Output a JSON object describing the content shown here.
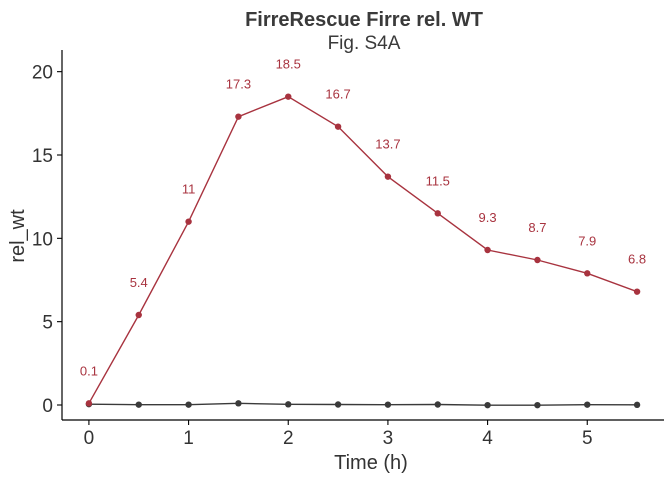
{
  "chart_data": {
    "type": "line",
    "title": "FirreRescue Firre rel. WT",
    "subtitle": "Fig. S4A",
    "xlabel": "Time (h)",
    "ylabel": "rel_wt",
    "x": [
      0,
      0.5,
      1,
      1.5,
      2,
      2.5,
      3,
      3.5,
      4,
      4.5,
      5,
      5.5
    ],
    "xlim": [
      -0.27,
      5.77
    ],
    "ylim": [
      -0.9,
      21.3
    ],
    "x_ticks": [
      0,
      1,
      2,
      3,
      4,
      5
    ],
    "y_ticks": [
      0,
      5,
      10,
      15,
      20
    ],
    "x_tick_labels": [
      "0",
      "1",
      "2",
      "3",
      "4",
      "5"
    ],
    "y_tick_labels": [
      "0",
      "5",
      "10",
      "15",
      "20"
    ],
    "grid": false,
    "series": [
      {
        "color": "#a8333f",
        "values": [
          0.1,
          5.4,
          11,
          17.3,
          18.5,
          16.7,
          13.7,
          11.5,
          9.3,
          8.7,
          7.9,
          6.8
        ],
        "data_labels": [
          "0.1",
          "5.4",
          "11",
          "17.3",
          "18.5",
          "16.7",
          "13.7",
          "11.5",
          "9.3",
          "8.7",
          "7.9",
          "6.8"
        ]
      },
      {
        "color": "#3a3a3a",
        "values": [
          0.05,
          0.02,
          0.02,
          0.1,
          0.04,
          0.03,
          0.02,
          0.03,
          -0.01,
          -0.01,
          0.02,
          0.01
        ]
      }
    ]
  }
}
